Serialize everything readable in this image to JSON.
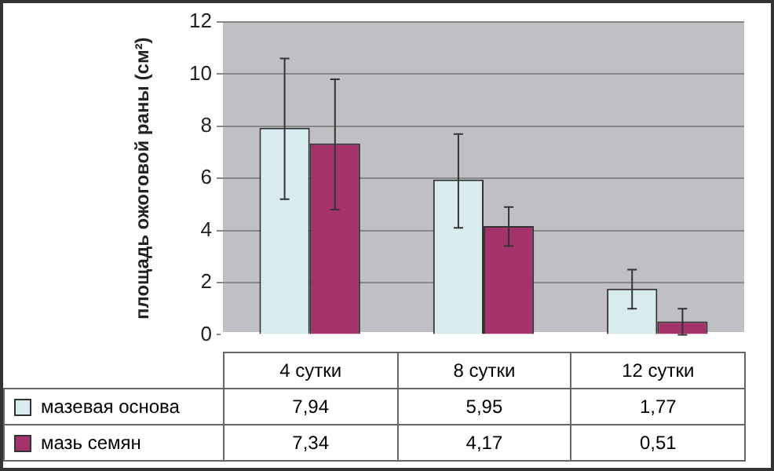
{
  "chart_data": {
    "type": "bar",
    "ylabel": "площадь ожоговой раны (см²)",
    "categories": [
      "4 сутки",
      "8 сутки",
      "12 сутки"
    ],
    "series": [
      {
        "name": "мазевая основа",
        "color": "#d9eced",
        "values": [
          7.94,
          5.95,
          1.77
        ],
        "errors": [
          [
            5.2,
            10.6
          ],
          [
            4.1,
            7.7
          ],
          [
            1.0,
            2.5
          ]
        ],
        "value_labels": [
          "7,94",
          "5,95",
          "1,77"
        ]
      },
      {
        "name": "мазь семян",
        "color": "#a3336a",
        "values": [
          7.34,
          4.17,
          0.51
        ],
        "errors": [
          [
            4.8,
            9.8
          ],
          [
            3.4,
            4.9
          ],
          [
            0.0,
            1.0
          ]
        ],
        "value_labels": [
          "7,34",
          "4,17",
          "0,51"
        ]
      }
    ],
    "ylim": [
      0,
      12
    ],
    "yticks": [
      0,
      2,
      4,
      6,
      8,
      10,
      12
    ],
    "grid": "y",
    "legend": "bottom",
    "data_labels": true
  }
}
